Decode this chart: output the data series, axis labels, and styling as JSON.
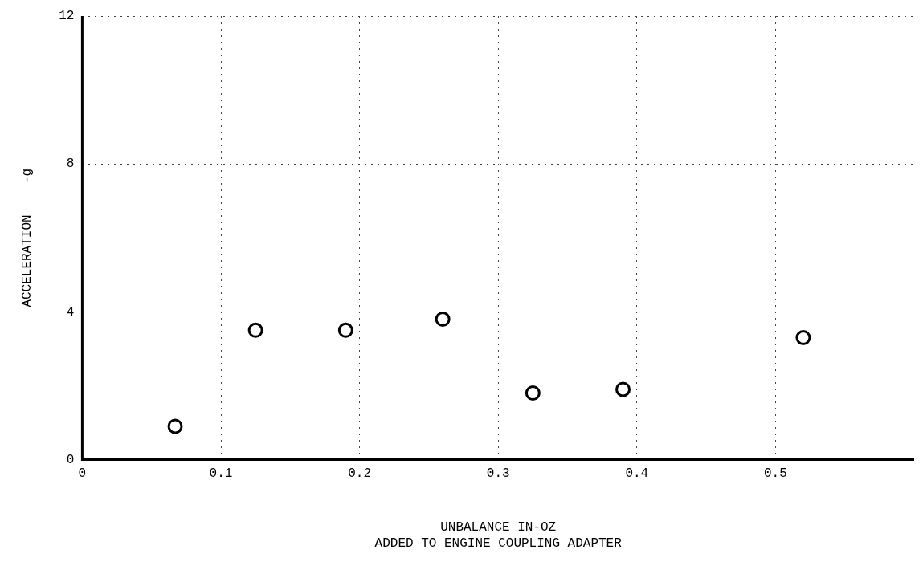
{
  "chart_data": {
    "type": "scatter",
    "xlabel": "UNBALANCE IN-OZ\nADDED TO ENGINE COUPLING ADAPTER",
    "ylabel": "ACCELERATION    -g",
    "x": [
      0.067,
      0.125,
      0.19,
      0.26,
      0.325,
      0.39,
      0.52
    ],
    "values": [
      0.9,
      3.5,
      3.5,
      3.8,
      1.8,
      1.9,
      3.3
    ],
    "color": "#000000",
    "marker": "circle",
    "grid": true,
    "line_style": "dotted",
    "xlim": [
      0,
      0.6
    ],
    "xticks": [
      0,
      0.1,
      0.2,
      0.3,
      0.4,
      0.5
    ],
    "ylim": [
      0,
      12
    ],
    "yticks": [
      0,
      4,
      8,
      12
    ]
  }
}
